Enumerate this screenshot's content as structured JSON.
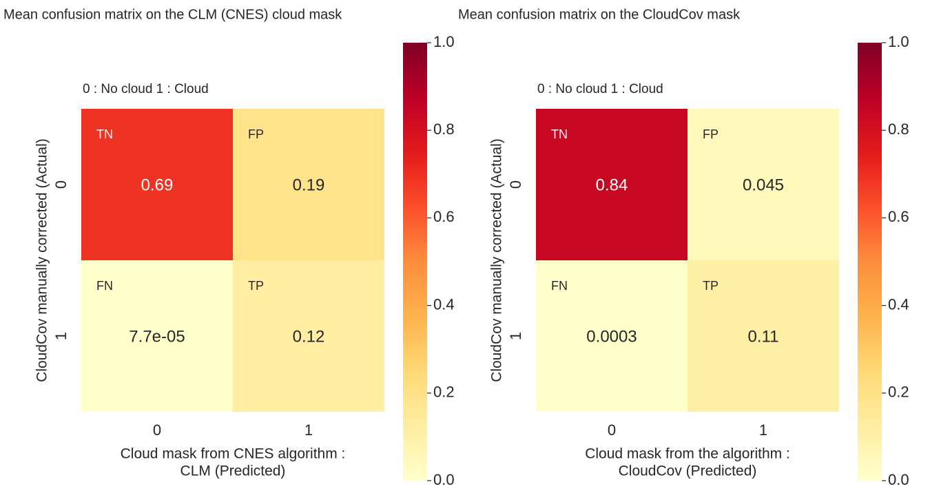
{
  "chart_data": [
    {
      "type": "heatmap",
      "title": "Mean confusion matrix on the CLM (CNES) cloud mask",
      "subtitle": "0 : No cloud    1 : Cloud",
      "xlabel": [
        "Cloud mask from CNES algorithm :",
        "CLM (Predicted)"
      ],
      "ylabel": "CloudCov manually corrected (Actual)",
      "xcategories": [
        "0",
        "1"
      ],
      "ycategories": [
        "0",
        "1"
      ],
      "values": [
        [
          0.69,
          0.19
        ],
        [
          7.7e-05,
          0.12
        ]
      ],
      "value_labels": [
        [
          "0.69",
          "0.19"
        ],
        [
          "7.7e-05",
          "0.12"
        ]
      ],
      "cell_labels": [
        [
          "TN",
          "FP"
        ],
        [
          "FN",
          "TP"
        ]
      ],
      "colormap": "YlOrRd",
      "clim": [
        0,
        1
      ],
      "cticks": [
        {
          "value": 0,
          "label": "0.0"
        },
        0.2,
        0.4,
        0.6,
        0.8,
        {
          "value": 1,
          "label": "1.0"
        }
      ]
    },
    {
      "type": "heatmap",
      "title": "Mean confusion matrix on the CloudCov mask",
      "subtitle": "0 : No cloud    1 : Cloud",
      "xlabel": [
        "Cloud mask from the algorithm :",
        "CloudCov (Predicted)"
      ],
      "ylabel": "CloudCov manually corrected (Actual)",
      "xcategories": [
        "0",
        "1"
      ],
      "ycategories": [
        "0",
        "1"
      ],
      "values": [
        [
          0.84,
          0.045
        ],
        [
          0.0003,
          0.11
        ]
      ],
      "value_labels": [
        [
          "0.84",
          "0.045"
        ],
        [
          "0.0003",
          "0.11"
        ]
      ],
      "cell_labels": [
        [
          "TN",
          "FP"
        ],
        [
          "FN",
          "TP"
        ]
      ],
      "colormap": "YlOrRd",
      "clim": [
        0,
        1
      ],
      "cticks": [
        {
          "value": 0,
          "label": "0.0"
        },
        0.2,
        0.4,
        0.6,
        0.8,
        {
          "value": 1,
          "label": "1.0"
        }
      ]
    }
  ]
}
